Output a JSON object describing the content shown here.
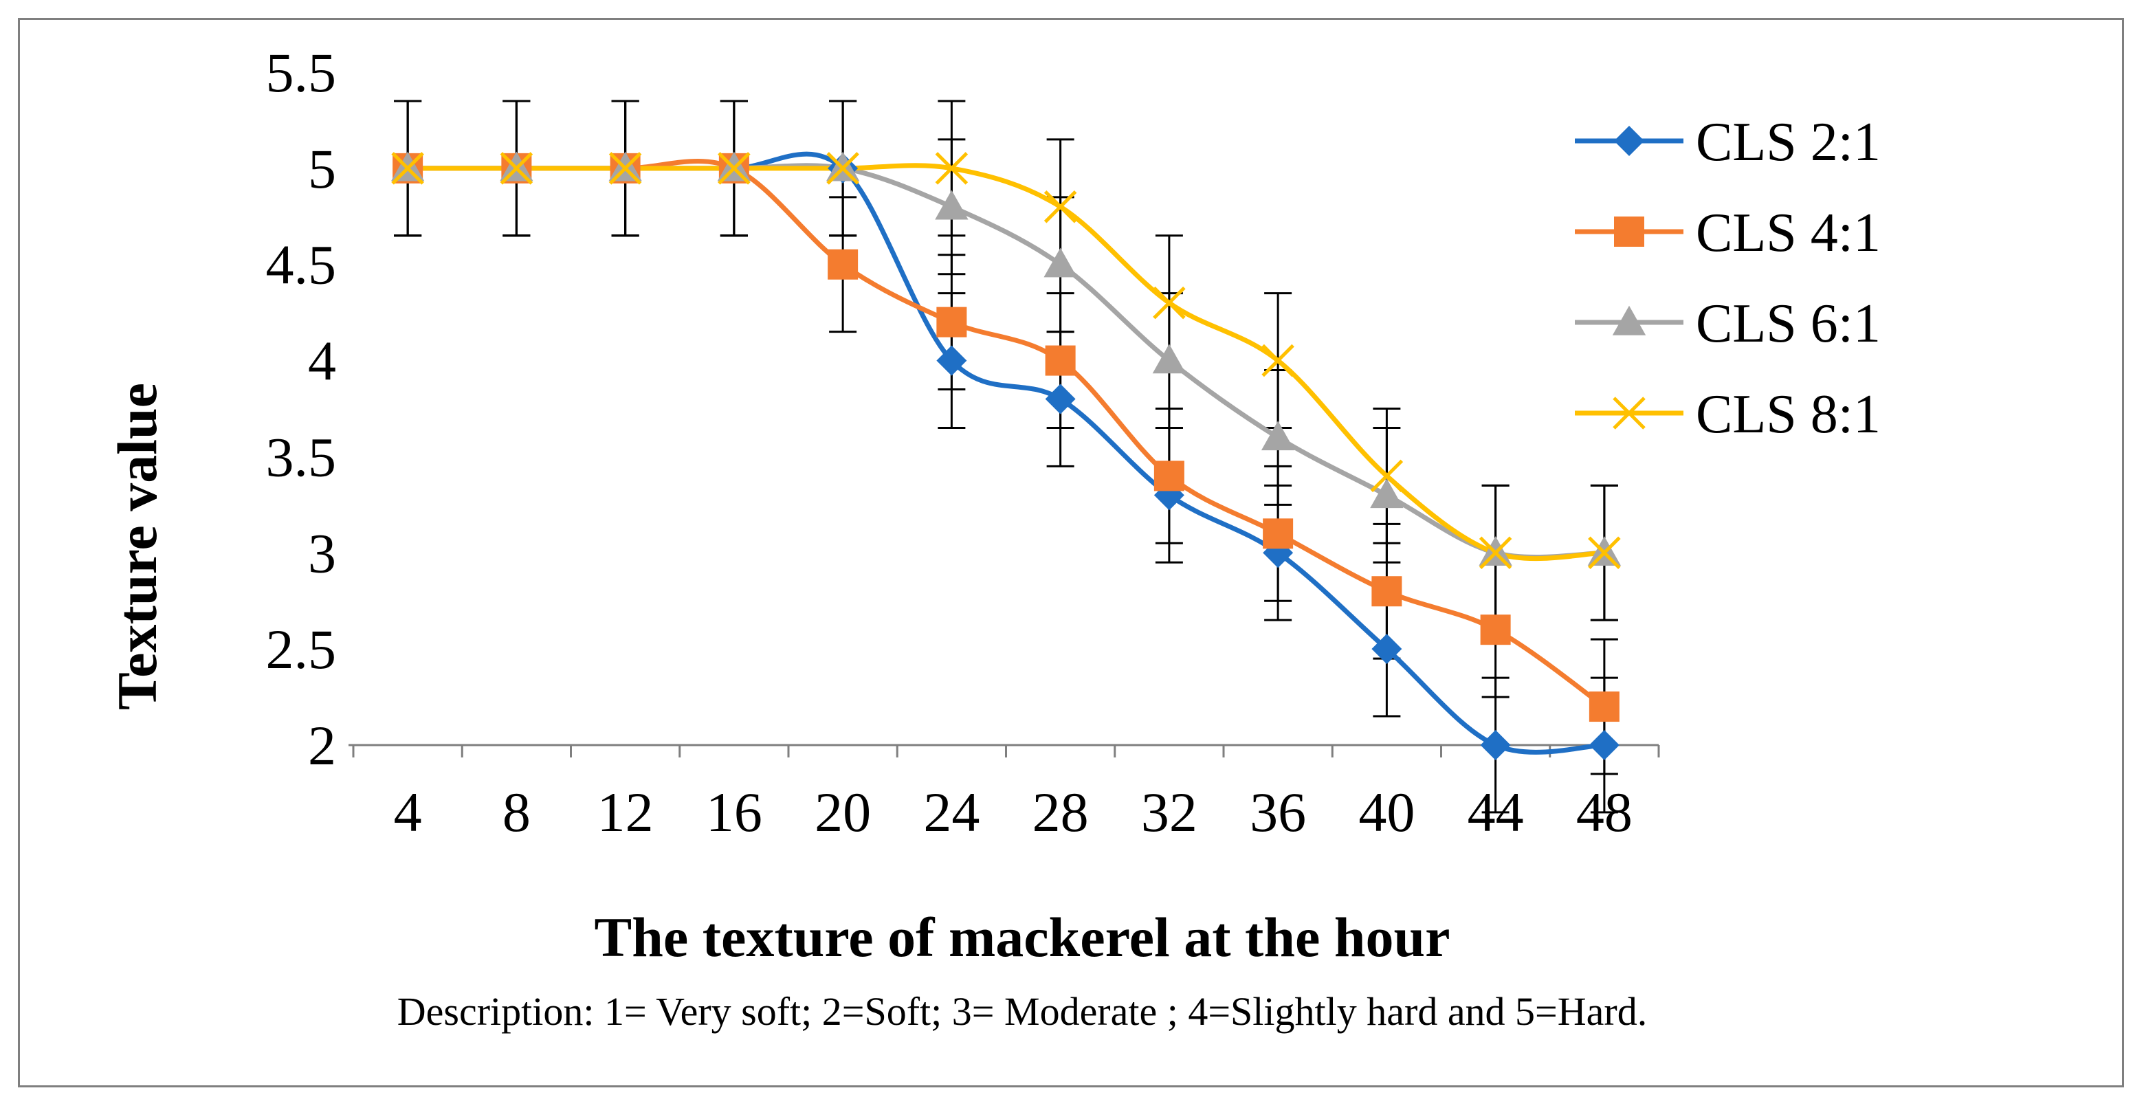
{
  "chart_data": {
    "type": "line",
    "smooth": true,
    "title": "",
    "xlabel": "The texture of mackerel at the hour",
    "ylabel": "Texture value",
    "description": "Description: 1= Very soft; 2=Soft; 3= Moderate ; 4=Slightly hard and 5=Hard.",
    "categories": [
      "4",
      "8",
      "12",
      "16",
      "20",
      "24",
      "28",
      "32",
      "36",
      "40",
      "44",
      "48"
    ],
    "y_ticks": [
      "2",
      "2.5",
      "3",
      "3.5",
      "4",
      "4.5",
      "5",
      "5.5"
    ],
    "ylim": [
      2,
      5.5
    ],
    "legend_position": "right",
    "error_bar": 0.35,
    "series": [
      {
        "name": "CLS 2:1",
        "color": "#1f6fc5",
        "marker": "diamond",
        "values": [
          5,
          5,
          5,
          5,
          5,
          4,
          3.8,
          3.3,
          3,
          2.5,
          2,
          2
        ]
      },
      {
        "name": "CLS 4:1",
        "color": "#f47c2f",
        "marker": "square",
        "values": [
          5,
          5,
          5,
          5,
          4.5,
          4.2,
          4,
          3.4,
          3.1,
          2.8,
          2.6,
          2.2
        ]
      },
      {
        "name": "CLS 6:1",
        "color": "#a5a5a5",
        "marker": "triangle",
        "values": [
          5,
          5,
          5,
          5,
          5,
          4.8,
          4.5,
          4,
          3.6,
          3.3,
          3,
          3
        ]
      },
      {
        "name": "CLS 8:1",
        "color": "#ffc000",
        "marker": "x",
        "values": [
          5,
          5,
          5,
          5,
          5,
          5,
          4.8,
          4.3,
          4,
          3.4,
          3,
          3
        ]
      }
    ]
  }
}
